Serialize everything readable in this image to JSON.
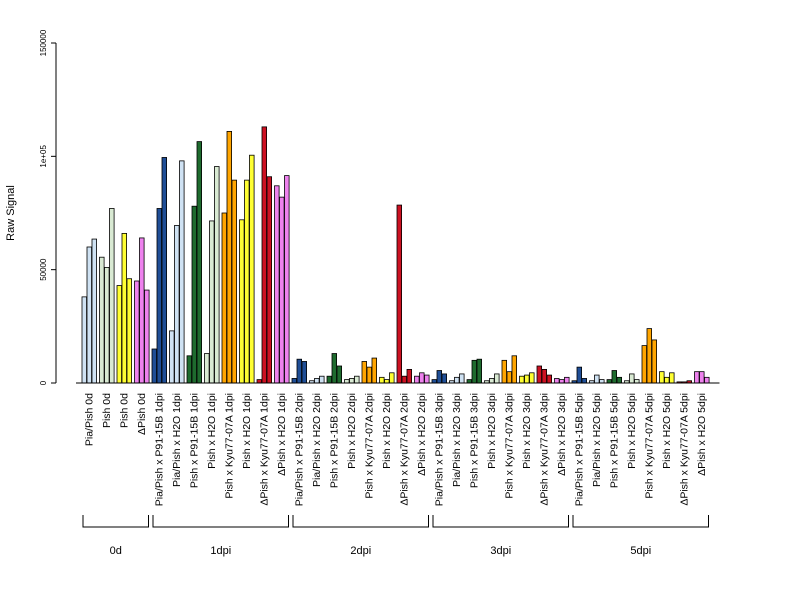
{
  "chart_data": {
    "type": "bar",
    "ylabel": "Raw Signal",
    "xlabel": "",
    "title": "",
    "ylim": [
      0,
      150000
    ],
    "yticks": [
      0,
      50000,
      100000,
      150000
    ],
    "ytick_labels": [
      "0",
      "50000",
      "1e+05",
      "150000"
    ],
    "colors": {
      "light_blue": "#cfe2f3",
      "light_green": "#d9ead3",
      "yellow": "#ffff33",
      "violet": "#ee82ee",
      "dark_blue": "#1f4e96",
      "dark_green": "#1e6b2e",
      "orange": "#ffa500",
      "red": "#cc1122"
    },
    "groups": [
      {
        "label": "Pia/Pish 0d",
        "values": [
          38000,
          60000,
          63500
        ],
        "color": "light_blue"
      },
      {
        "label": "Pish 0d",
        "values": [
          55500,
          51000,
          77000
        ],
        "color": "light_green"
      },
      {
        "label": "Pish 0d",
        "values": [
          43000,
          66000,
          46000
        ],
        "color": "yellow"
      },
      {
        "label": "ΔPish 0d",
        "values": [
          45000,
          64000,
          41000
        ],
        "color": "violet"
      },
      {
        "label": "Pia/Pish x P91-15B 1dpi",
        "values": [
          15000,
          77000,
          99500
        ],
        "color": "dark_blue"
      },
      {
        "label": "Pia/Pish x H2O 1dpi",
        "values": [
          23000,
          69500,
          98000
        ],
        "color": "light_blue"
      },
      {
        "label": "Pish x P91-15B 1dpi",
        "values": [
          12000,
          78000,
          106500
        ],
        "color": "dark_green"
      },
      {
        "label": "Pish x H2O 1dpi",
        "values": [
          13000,
          71500,
          95500
        ],
        "color": "light_green"
      },
      {
        "label": "Pish x Kyu77-07A 1dpi",
        "values": [
          75000,
          111000,
          89500
        ],
        "color": "orange"
      },
      {
        "label": "Pish x H2O 1dpi",
        "values": [
          72000,
          89500,
          100500
        ],
        "color": "yellow"
      },
      {
        "label": "ΔPish x Kyu77-07A 1dpi",
        "values": [
          1500,
          113000,
          91000
        ],
        "color": "red"
      },
      {
        "label": "ΔPish x H2O 1dpi",
        "values": [
          87000,
          82000,
          91500
        ],
        "color": "violet"
      },
      {
        "label": "Pia/Pish x P91-15B 2dpi",
        "values": [
          2000,
          10500,
          9500
        ],
        "color": "dark_blue"
      },
      {
        "label": "Pia/Pish x H2O 2dpi",
        "values": [
          1000,
          2000,
          3000
        ],
        "color": "light_blue"
      },
      {
        "label": "Pish x P91-15B 2dpi",
        "values": [
          3000,
          13000,
          7500
        ],
        "color": "dark_green"
      },
      {
        "label": "Pish x H2O 2dpi",
        "values": [
          1500,
          2000,
          3000
        ],
        "color": "light_green"
      },
      {
        "label": "Pish x Kyu77-07A 2dpi",
        "values": [
          9500,
          7000,
          11000
        ],
        "color": "orange"
      },
      {
        "label": "Pish x H2O 2dpi",
        "values": [
          2500,
          1500,
          4500
        ],
        "color": "yellow"
      },
      {
        "label": "ΔPish x Kyu77-07A 2dpi",
        "values": [
          78500,
          3000,
          6000
        ],
        "color": "red"
      },
      {
        "label": "ΔPish x H2O 2dpi",
        "values": [
          3000,
          4500,
          3500
        ],
        "color": "violet"
      },
      {
        "label": "Pia/Pish x P91-15B 3dpi",
        "values": [
          1500,
          5500,
          4000
        ],
        "color": "dark_blue"
      },
      {
        "label": "Pia/Pish x H2O 3dpi",
        "values": [
          1000,
          2500,
          4000
        ],
        "color": "light_blue"
      },
      {
        "label": "Pish x P91-15B 3dpi",
        "values": [
          1500,
          10000,
          10500
        ],
        "color": "dark_green"
      },
      {
        "label": "Pish x H2O 3dpi",
        "values": [
          1000,
          2000,
          4000
        ],
        "color": "light_green"
      },
      {
        "label": "Pish x Kyu77-07A 3dpi",
        "values": [
          10000,
          5000,
          12000
        ],
        "color": "orange"
      },
      {
        "label": "Pish x H2O 3dpi",
        "values": [
          3000,
          3500,
          4500
        ],
        "color": "yellow"
      },
      {
        "label": "ΔPish x Kyu77-07A 3dpi",
        "values": [
          7500,
          6000,
          3500
        ],
        "color": "red"
      },
      {
        "label": "ΔPish x H2O 3dpi",
        "values": [
          2000,
          1500,
          2500
        ],
        "color": "violet"
      },
      {
        "label": "Pia/Pish x P91-15B 5dpi",
        "values": [
          1000,
          7000,
          2000
        ],
        "color": "dark_blue"
      },
      {
        "label": "Pia/Pish x H2O 5dpi",
        "values": [
          1000,
          3500,
          1500
        ],
        "color": "light_blue"
      },
      {
        "label": "Pish x P91-15B 5dpi",
        "values": [
          1500,
          5500,
          2500
        ],
        "color": "dark_green"
      },
      {
        "label": "Pish x H2O 5dpi",
        "values": [
          1000,
          4000,
          1500
        ],
        "color": "light_green"
      },
      {
        "label": "Pish x Kyu77-07A 5dpi",
        "values": [
          16500,
          24000,
          19000
        ],
        "color": "orange"
      },
      {
        "label": "Pish x H2O 5dpi",
        "values": [
          5000,
          2500,
          4500
        ],
        "color": "yellow"
      },
      {
        "label": "ΔPish x Kyu77-07A 5dpi",
        "values": [
          500,
          500,
          1000
        ],
        "color": "red"
      },
      {
        "label": "ΔPish x H2O 5dpi",
        "values": [
          5000,
          5000,
          2500
        ],
        "color": "violet"
      }
    ],
    "timepoints": [
      {
        "label": "0d",
        "groups": [
          0,
          3
        ]
      },
      {
        "label": "1dpi",
        "groups": [
          4,
          11
        ]
      },
      {
        "label": "2dpi",
        "groups": [
          12,
          19
        ]
      },
      {
        "label": "3dpi",
        "groups": [
          20,
          27
        ]
      },
      {
        "label": "5dpi",
        "groups": [
          28,
          35
        ]
      }
    ]
  }
}
